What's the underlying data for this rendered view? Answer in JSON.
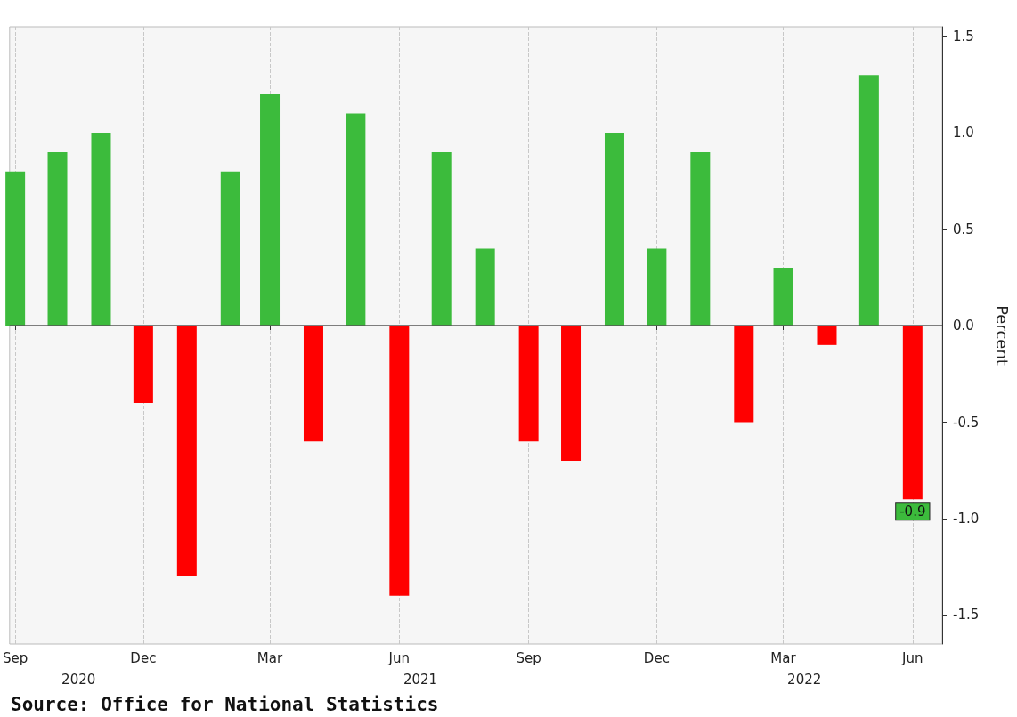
{
  "chart_data": {
    "type": "bar",
    "ylabel": "Percent",
    "x": [
      "2020-09-01",
      "2020-10-01",
      "2020-11-01",
      "2020-12-01",
      "2021-01-01",
      "2021-02-01",
      "2021-03-01",
      "2021-04-01",
      "2021-05-01",
      "2021-06-01",
      "2021-07-01",
      "2021-08-01",
      "2021-09-01",
      "2021-10-01",
      "2021-11-01",
      "2021-12-01",
      "2022-01-01",
      "2022-02-01",
      "2022-03-01",
      "2022-04-01",
      "2022-05-01",
      "2022-06-01"
    ],
    "values": [
      0.8,
      0.9,
      1.0,
      -0.4,
      -1.3,
      0.8,
      1.2,
      -0.6,
      1.1,
      -1.4,
      0.9,
      0.4,
      -0.6,
      -0.7,
      1.0,
      0.4,
      0.9,
      -0.5,
      0.3,
      -0.1,
      1.3,
      -0.9
    ],
    "colors": [
      "#3cbb3c",
      "#3cbb3c",
      "#3cbb3c",
      "#ff0000",
      "#ff0000",
      "#3cbb3c",
      "#3cbb3c",
      "#ff0000",
      "#3cbb3c",
      "#ff0000",
      "#3cbb3c",
      "#3cbb3c",
      "#ff0000",
      "#ff0000",
      "#3cbb3c",
      "#3cbb3c",
      "#3cbb3c",
      "#ff0000",
      "#3cbb3c",
      "#ff0000",
      "#3cbb3c",
      "#ff0000"
    ],
    "xlim": [
      "2020-08-28",
      "2022-06-22"
    ],
    "xticks": [
      {
        "value": "2020-09-01",
        "label": "Sep"
      },
      {
        "value": "2020-12-01",
        "label": "Dec"
      },
      {
        "value": "2021-03-01",
        "label": "Mar"
      },
      {
        "value": "2021-06-01",
        "label": "Jun"
      },
      {
        "value": "2021-09-01",
        "label": "Sep"
      },
      {
        "value": "2021-12-01",
        "label": "Dec"
      },
      {
        "value": "2022-03-01",
        "label": "Mar"
      },
      {
        "value": "2022-06-01",
        "label": "Jun"
      }
    ],
    "ylim": [
      -1.65,
      1.55
    ],
    "yticks": [
      {
        "value": -1.5,
        "label": "-1.5"
      },
      {
        "value": -1,
        "label": "-1.0"
      },
      {
        "value": -0.5,
        "label": "-0.5"
      },
      {
        "value": 0,
        "label": "0.0"
      },
      {
        "value": 0.5,
        "label": "0.5"
      },
      {
        "value": 1,
        "label": "1.0"
      },
      {
        "value": 1.5,
        "label": "1.5"
      }
    ],
    "x2lim": [
      "2020-08-28",
      "2022-06-22"
    ],
    "x2ticks": [
      {
        "value": "2020-10-16",
        "label": "2020"
      },
      {
        "value": "2021-06-16",
        "label": "2021"
      },
      {
        "value": "2022-03-16",
        "label": "2022"
      }
    ],
    "value_labels": [
      null,
      null,
      null,
      null,
      null,
      null,
      null,
      null,
      null,
      null,
      null,
      null,
      null,
      null,
      null,
      null,
      null,
      null,
      null,
      null,
      null,
      "-0.9"
    ],
    "grid": "x",
    "ref_lines": [
      {
        "axis": "y",
        "value": 0,
        "color": "#555555"
      }
    ],
    "annotations": [
      "Source: Office for National Statistics"
    ]
  }
}
